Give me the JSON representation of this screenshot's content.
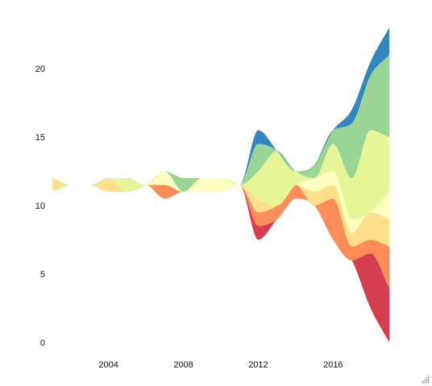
{
  "chart_data": {
    "type": "area",
    "style": "streamgraph",
    "title": "",
    "xlabel": "",
    "ylabel": "",
    "x": [
      2001,
      2002,
      2003,
      2004,
      2005,
      2006,
      2007,
      2008,
      2009,
      2010,
      2011,
      2012,
      2013,
      2014,
      2015,
      2016,
      2017,
      2018,
      2019
    ],
    "xlim": [
      2001,
      2019
    ],
    "ylim": [
      0,
      23
    ],
    "x_ticks": [
      "2004",
      "2008",
      "2012",
      "2016"
    ],
    "y_ticks": [
      "0",
      "5",
      "10",
      "15",
      "20"
    ],
    "grid": false,
    "legend": "none",
    "series": [
      {
        "color": "#d53e4f",
        "values": [
          0,
          0,
          0,
          0,
          0,
          0,
          0,
          0,
          0,
          0,
          0,
          1,
          0,
          0,
          0,
          0,
          0,
          4,
          4
        ]
      },
      {
        "color": "#fc8d59",
        "values": [
          0,
          0,
          0,
          0,
          0,
          0,
          1,
          0,
          0,
          0,
          0,
          1,
          1,
          1,
          0,
          3,
          1,
          1,
          3
        ]
      },
      {
        "color": "#fee08b",
        "values": [
          1,
          0,
          0,
          1,
          0,
          0,
          0,
          0,
          0,
          0,
          0,
          1,
          0,
          0,
          1,
          1,
          1,
          2,
          2
        ]
      },
      {
        "color": "#ffffbf",
        "values": [
          0,
          0,
          0,
          0,
          0,
          0,
          1,
          0,
          1,
          1,
          0,
          0,
          0,
          0,
          1,
          1,
          1,
          0,
          2
        ]
      },
      {
        "color": "#e6f598",
        "values": [
          0,
          0,
          0,
          0,
          1,
          0,
          0,
          0,
          0,
          0,
          0,
          2,
          4,
          1,
          0,
          2,
          3,
          6,
          4
        ]
      },
      {
        "color": "#99d594",
        "values": [
          0,
          0,
          0,
          0,
          0,
          0,
          0,
          1,
          0,
          0,
          0,
          2,
          0,
          0,
          1,
          1,
          4,
          4,
          6
        ]
      },
      {
        "color": "#3288bd",
        "values": [
          0,
          0,
          0,
          0,
          0,
          0,
          0,
          0,
          0,
          0,
          0,
          1,
          0,
          0,
          0,
          0,
          1,
          1,
          2
        ]
      }
    ]
  }
}
